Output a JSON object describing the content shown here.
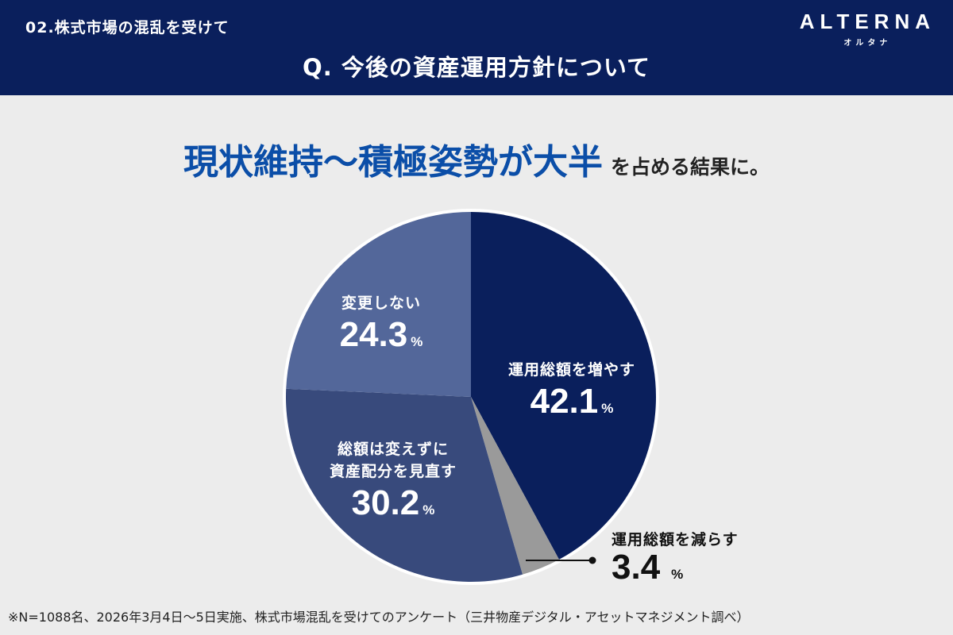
{
  "header": {
    "section": "02.株式市場の混乱を受けて",
    "question": "Q. 今後の資産運用方針について",
    "logo_en": "ALTERNA",
    "logo_jp": "オルタナ"
  },
  "headline": {
    "emphasis": "現状維持〜積極姿勢が大半",
    "rest": "を占める結果に。"
  },
  "chart_data": {
    "type": "pie",
    "title": "Q. 今後の資産運用方針について",
    "categories": [
      "運用総額を増やす",
      "運用総額を減らす",
      "総額は変えずに資産配分を見直す",
      "変更しない"
    ],
    "values": [
      42.1,
      3.4,
      30.2,
      24.3
    ],
    "colors": [
      "#0a1f5c",
      "#9a9a9a",
      "#384a7c",
      "#53679a"
    ],
    "unit": "%",
    "start_angle": "top, clockwise"
  },
  "labels": {
    "increase": {
      "text": "運用総額を増やす",
      "value": "42.1",
      "unit": "%"
    },
    "decrease": {
      "text": "運用総額を減らす",
      "value": "3.4",
      "unit": "%"
    },
    "rebalance": {
      "line1": "総額は変えずに",
      "line2": "資産配分を見直す",
      "value": "30.2",
      "unit": "%"
    },
    "nochange": {
      "text": "変更しない",
      "value": "24.3",
      "unit": "%"
    }
  },
  "footnote": "※N=1088名、2026年3月4日〜5日実施、株式市場混乱を受けてのアンケート（三井物産デジタル・アセットマネジメント調べ）"
}
